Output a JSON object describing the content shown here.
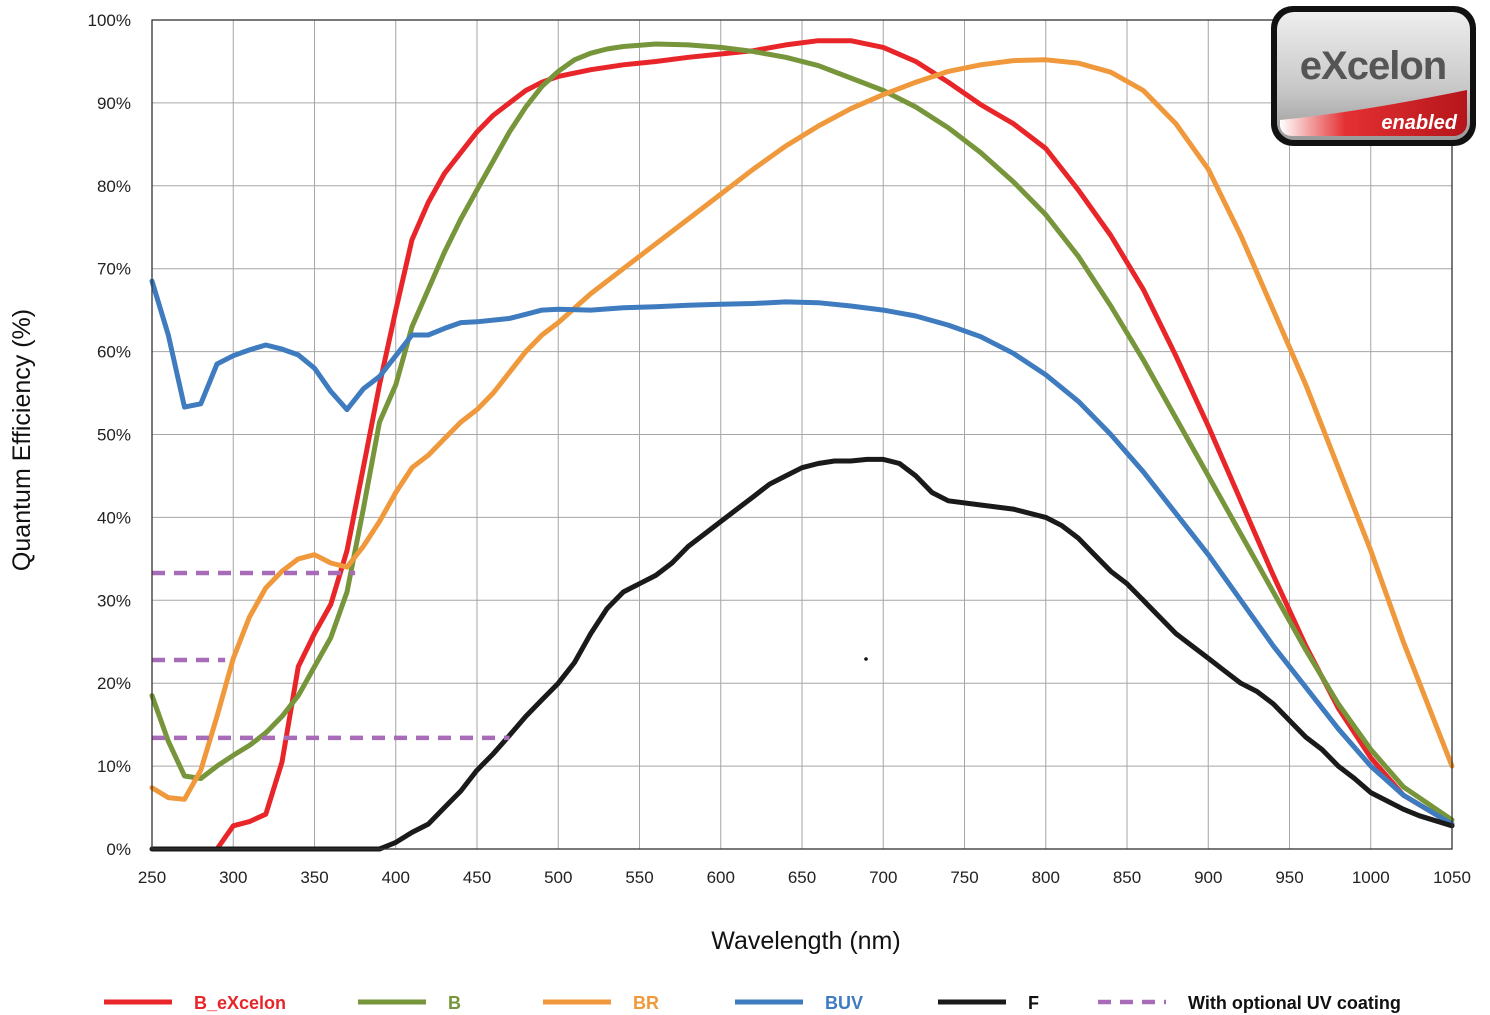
{
  "chart_data": {
    "type": "line",
    "title": "",
    "xlabel": "Wavelength (nm)",
    "ylabel": "Quantum Efficiency (%)",
    "xlim": [
      250,
      1050
    ],
    "ylim": [
      0,
      100
    ],
    "x_ticks": [
      250,
      300,
      350,
      400,
      450,
      500,
      550,
      600,
      650,
      700,
      750,
      800,
      850,
      900,
      950,
      1000,
      1050
    ],
    "y_ticks": [
      0,
      10,
      20,
      30,
      40,
      50,
      60,
      70,
      80,
      90,
      100
    ],
    "y_tick_labels": [
      "0%",
      "10%",
      "20%",
      "30%",
      "40%",
      "50%",
      "60%",
      "70%",
      "80%",
      "90%",
      "100%"
    ],
    "grid": true,
    "legend_position": "bottom",
    "series": [
      {
        "name": "B_eXcelon",
        "color": "#e8262a",
        "style": "solid",
        "x": [
          290,
          300,
          310,
          320,
          330,
          340,
          350,
          360,
          370,
          380,
          390,
          400,
          410,
          420,
          430,
          440,
          450,
          460,
          470,
          480,
          490,
          500,
          520,
          540,
          560,
          580,
          600,
          620,
          640,
          660,
          680,
          700,
          720,
          740,
          760,
          780,
          800,
          820,
          840,
          860,
          880,
          900,
          920,
          940,
          960,
          980,
          1000,
          1020,
          1050
        ],
        "y": [
          0,
          2.8,
          3.3,
          4.2,
          10.5,
          22,
          26,
          29.5,
          36,
          46,
          56,
          65,
          73.5,
          78,
          81.5,
          84,
          86.5,
          88.5,
          90,
          91.5,
          92.5,
          93.2,
          94,
          94.6,
          95,
          95.5,
          95.9,
          96.3,
          97,
          97.5,
          97.5,
          96.7,
          95,
          92.5,
          89.8,
          87.5,
          84.5,
          79.5,
          74,
          67.5,
          59.5,
          51,
          42,
          33,
          24.5,
          17,
          11,
          6.5,
          3
        ]
      },
      {
        "name": "B",
        "color": "#77953a",
        "style": "solid",
        "x": [
          250,
          260,
          270,
          280,
          290,
          300,
          310,
          320,
          330,
          340,
          350,
          360,
          370,
          380,
          390,
          400,
          410,
          420,
          430,
          440,
          450,
          460,
          470,
          480,
          490,
          500,
          510,
          520,
          530,
          540,
          560,
          580,
          600,
          620,
          640,
          660,
          680,
          700,
          720,
          740,
          760,
          780,
          800,
          820,
          840,
          860,
          880,
          900,
          920,
          940,
          960,
          980,
          1000,
          1020,
          1050
        ],
        "y": [
          18.5,
          13,
          8.8,
          8.5,
          10,
          11.3,
          12.5,
          14,
          16,
          18.5,
          22,
          25.5,
          31,
          41,
          51.5,
          56,
          63,
          67.5,
          72,
          76,
          79.5,
          83,
          86.5,
          89.5,
          92,
          93.8,
          95.2,
          96,
          96.5,
          96.8,
          97.1,
          97,
          96.7,
          96.2,
          95.5,
          94.5,
          93,
          91.5,
          89.5,
          87,
          84,
          80.5,
          76.5,
          71.5,
          65.5,
          59,
          52,
          45,
          38,
          31,
          24,
          17.5,
          12,
          7.5,
          3.5
        ]
      },
      {
        "name": "BR",
        "color": "#f0993c",
        "style": "solid",
        "x": [
          250,
          260,
          270,
          280,
          290,
          300,
          310,
          320,
          330,
          340,
          350,
          360,
          370,
          380,
          390,
          400,
          410,
          420,
          430,
          440,
          450,
          460,
          470,
          480,
          490,
          500,
          520,
          540,
          560,
          580,
          600,
          620,
          640,
          660,
          680,
          700,
          720,
          740,
          760,
          780,
          800,
          820,
          840,
          860,
          880,
          900,
          920,
          940,
          960,
          980,
          1000,
          1020,
          1050
        ],
        "y": [
          7.4,
          6.2,
          6,
          9.5,
          16,
          23,
          28,
          31.5,
          33.5,
          35,
          35.5,
          34.5,
          34,
          36.5,
          39.5,
          43,
          46,
          47.5,
          49.5,
          51.5,
          53,
          55,
          57.5,
          60,
          62,
          63.5,
          67,
          70,
          73,
          76,
          79,
          82,
          84.8,
          87.2,
          89.3,
          91,
          92.5,
          93.8,
          94.6,
          95.1,
          95.2,
          94.8,
          93.7,
          91.5,
          87.5,
          82,
          74,
          65,
          56,
          46,
          36,
          25,
          10
        ]
      },
      {
        "name": "BUV",
        "color": "#3f7bbf",
        "style": "solid",
        "x": [
          250,
          260,
          270,
          280,
          290,
          300,
          310,
          320,
          330,
          340,
          350,
          360,
          370,
          380,
          390,
          400,
          410,
          420,
          430,
          440,
          450,
          460,
          470,
          480,
          490,
          500,
          520,
          540,
          560,
          580,
          600,
          620,
          640,
          660,
          680,
          700,
          720,
          740,
          760,
          780,
          800,
          820,
          840,
          860,
          880,
          900,
          920,
          940,
          960,
          980,
          1000,
          1020,
          1050
        ],
        "y": [
          68.5,
          62,
          53.3,
          53.7,
          58.5,
          59.5,
          60.2,
          60.8,
          60.3,
          59.6,
          58,
          55.2,
          53,
          55.5,
          57,
          59.5,
          62,
          62,
          62.8,
          63.5,
          63.6,
          63.8,
          64,
          64.5,
          65,
          65.1,
          65,
          65.3,
          65.4,
          65.6,
          65.7,
          65.8,
          66,
          65.9,
          65.5,
          65,
          64.3,
          63.2,
          61.8,
          59.8,
          57.2,
          54,
          50,
          45.5,
          40.5,
          35.5,
          30,
          24.5,
          19.5,
          14.5,
          10,
          6.5,
          3
        ]
      },
      {
        "name": "F",
        "color": "#1a1a1a",
        "style": "solid",
        "x": [
          250,
          280,
          300,
          350,
          390,
          400,
          410,
          420,
          430,
          440,
          450,
          460,
          470,
          480,
          490,
          500,
          510,
          520,
          530,
          540,
          550,
          560,
          570,
          580,
          590,
          600,
          610,
          620,
          630,
          640,
          650,
          660,
          670,
          680,
          690,
          700,
          710,
          720,
          730,
          740,
          760,
          780,
          800,
          810,
          820,
          830,
          840,
          850,
          860,
          870,
          880,
          890,
          900,
          910,
          920,
          930,
          940,
          950,
          960,
          970,
          980,
          990,
          1000,
          1010,
          1020,
          1030,
          1040,
          1050
        ],
        "y": [
          0,
          0,
          0,
          0,
          0,
          0.8,
          2,
          3,
          5,
          7,
          9.5,
          11.5,
          13.7,
          16,
          18,
          20,
          22.5,
          26,
          29,
          31,
          32,
          33,
          34.5,
          36.5,
          38,
          39.5,
          41,
          42.5,
          44,
          45,
          46,
          46.5,
          46.8,
          46.8,
          47,
          47,
          46.5,
          45,
          43,
          42,
          41.5,
          41,
          40,
          39,
          37.5,
          35.5,
          33.5,
          32,
          30,
          28,
          26,
          24.5,
          23,
          21.5,
          20,
          19,
          17.5,
          15.5,
          13.5,
          12,
          10,
          8.5,
          6.8,
          5.8,
          4.8,
          4,
          3.4,
          2.8
        ]
      },
      {
        "name": "With optional UV coating",
        "color": "#a76bb8",
        "style": "dashed",
        "segments": [
          {
            "x": [
              250,
              375
            ],
            "y": [
              33.3,
              33.3
            ]
          },
          {
            "x": [
              250,
              295
            ],
            "y": [
              22.8,
              22.8
            ]
          },
          {
            "x": [
              250,
              470
            ],
            "y": [
              13.4,
              13.4
            ]
          }
        ]
      }
    ],
    "legend": [
      {
        "label": "B_eXcelon",
        "color": "#e8262a",
        "style": "solid"
      },
      {
        "label": "B",
        "color": "#77953a",
        "style": "solid"
      },
      {
        "label": "BR",
        "color": "#f0993c",
        "style": "solid"
      },
      {
        "label": "BUV",
        "color": "#3f7bbf",
        "style": "solid"
      },
      {
        "label": "F",
        "color": "#1a1a1a",
        "style": "solid"
      },
      {
        "label": "With optional UV coating",
        "color": "#a76bb8",
        "style": "dashed"
      }
    ]
  },
  "logo": {
    "name": "eXcelon",
    "tagline": "enabled"
  }
}
